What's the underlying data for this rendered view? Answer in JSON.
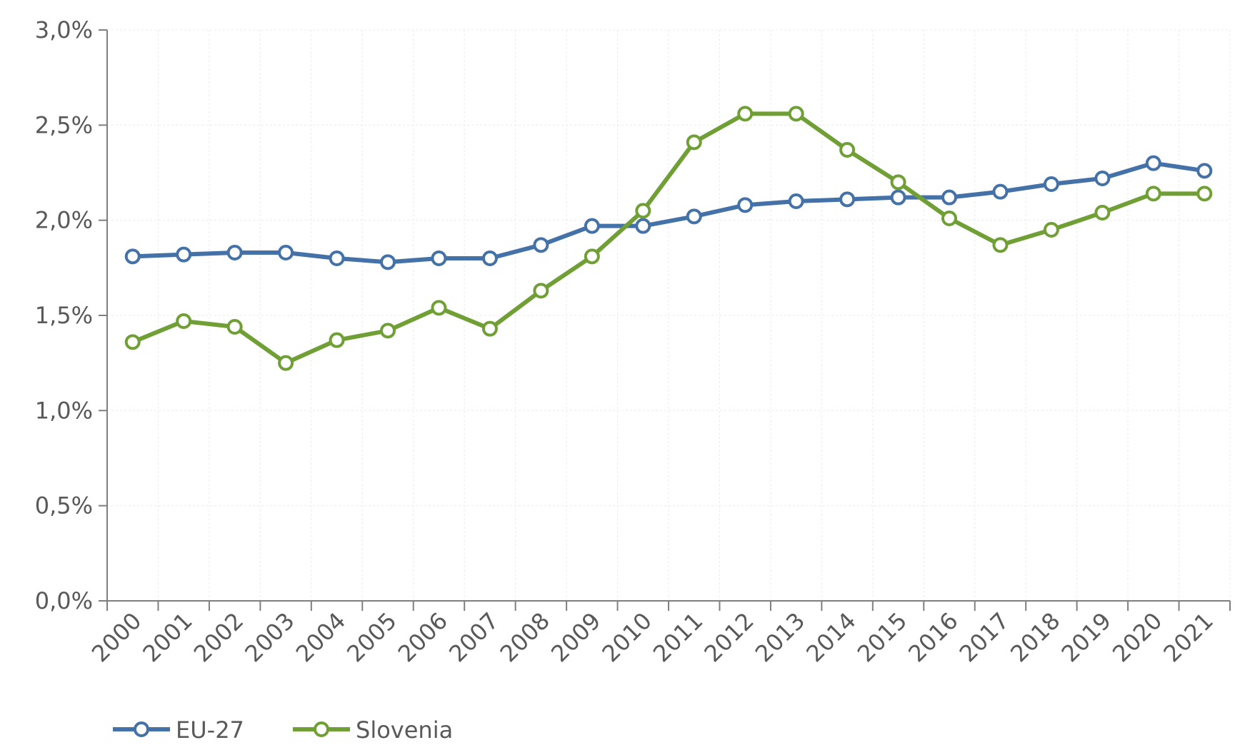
{
  "chart_data": {
    "type": "line",
    "title": "",
    "xlabel": "",
    "ylabel": "",
    "categories": [
      "2000",
      "2001",
      "2002",
      "2003",
      "2004",
      "2005",
      "2006",
      "2007",
      "2008",
      "2009",
      "2010",
      "2011",
      "2012",
      "2013",
      "2014",
      "2015",
      "2016",
      "2017",
      "2018",
      "2019",
      "2020",
      "2021"
    ],
    "ylim": [
      0,
      0.03
    ],
    "y_ticks": [
      {
        "value": 0.0,
        "label": "0,0%"
      },
      {
        "value": 0.005,
        "label": "0,5%"
      },
      {
        "value": 0.01,
        "label": "1,0%"
      },
      {
        "value": 0.015,
        "label": "1,5%"
      },
      {
        "value": 0.02,
        "label": "2,0%"
      },
      {
        "value": 0.025,
        "label": "2,5%"
      },
      {
        "value": 0.03,
        "label": "3,0%"
      }
    ],
    "grid": true,
    "legend_position": "bottom-left",
    "series": [
      {
        "name": "EU-27",
        "color": "#4472a8",
        "marker": "hollow-circle",
        "values": [
          0.0181,
          0.0182,
          0.0183,
          0.0183,
          0.018,
          0.0178,
          0.018,
          0.018,
          0.0187,
          0.0197,
          0.0197,
          0.0202,
          0.0208,
          0.021,
          0.0211,
          0.0212,
          0.0212,
          0.0215,
          0.0219,
          0.0222,
          0.023,
          0.0226
        ]
      },
      {
        "name": "Slovenia",
        "color": "#70a035",
        "marker": "hollow-circle",
        "values": [
          0.0136,
          0.0147,
          0.0144,
          0.0125,
          0.0137,
          0.0142,
          0.0154,
          0.0143,
          0.0163,
          0.0181,
          0.0205,
          0.0241,
          0.0256,
          0.0256,
          0.0237,
          0.022,
          0.0201,
          0.0187,
          0.0195,
          0.0204,
          0.0214,
          0.0214
        ]
      }
    ]
  }
}
